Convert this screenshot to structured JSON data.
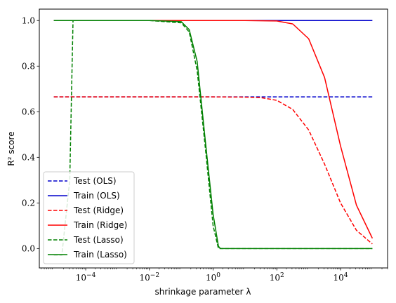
{
  "chart_data": {
    "type": "line",
    "xlabel": "shrinkage parameter λ",
    "ylabel": "R² score",
    "xscale": "log",
    "xlim": [
      3.5e-06,
      300000
    ],
    "ylim": [
      -0.085,
      1.05
    ],
    "xticks": [
      {
        "value": 0.0001,
        "base": "10",
        "exp": "−4"
      },
      {
        "value": 0.01,
        "base": "10",
        "exp": "−2"
      },
      {
        "value": 1,
        "base": "10",
        "exp": "0"
      },
      {
        "value": 100,
        "base": "10",
        "exp": "2"
      },
      {
        "value": 10000,
        "base": "10",
        "exp": "4"
      }
    ],
    "yticks": [
      "0.0",
      "0.2",
      "0.4",
      "0.6",
      "0.8",
      "1.0"
    ],
    "grid": false,
    "legend_position": "lower-left",
    "series": [
      {
        "name": "Test (OLS)",
        "color": "#0000cc",
        "dash": true,
        "x": [
          1e-05,
          100000
        ],
        "y": [
          0.665,
          0.665
        ]
      },
      {
        "name": "Train (OLS)",
        "color": "#0000cc",
        "dash": false,
        "x": [
          1e-05,
          100000
        ],
        "y": [
          1.0,
          1.0
        ]
      },
      {
        "name": "Test (Ridge)",
        "color": "#ff0000",
        "dash": true,
        "x": [
          1e-05,
          1,
          10,
          31,
          100,
          316,
          1000,
          3162,
          10000,
          31623,
          100000
        ],
        "y": [
          0.665,
          0.665,
          0.664,
          0.662,
          0.65,
          0.61,
          0.52,
          0.37,
          0.2,
          0.08,
          0.02
        ]
      },
      {
        "name": "Train (Ridge)",
        "color": "#ff0000",
        "dash": false,
        "x": [
          1e-05,
          10,
          100,
          316,
          1000,
          3162,
          10000,
          31623,
          100000
        ],
        "y": [
          1.0,
          1.0,
          0.998,
          0.985,
          0.92,
          0.75,
          0.45,
          0.19,
          0.045
        ]
      },
      {
        "name": "Test (Lasso)",
        "color": "#008000",
        "dash": true,
        "x": [
          1e-05,
          1.78e-05,
          3.16e-05,
          4e-05,
          0.0001,
          0.01,
          0.1,
          0.178,
          0.316,
          0.562,
          1,
          1.47,
          10,
          100000
        ],
        "y": [
          -0.03,
          -0.03,
          0.3,
          1.0,
          1.0,
          1.0,
          0.99,
          0.95,
          0.78,
          0.45,
          0.1,
          0.0,
          0.0,
          0.0
        ]
      },
      {
        "name": "Train (Lasso)",
        "color": "#008000",
        "dash": false,
        "x": [
          1e-05,
          0.01,
          0.1,
          0.178,
          0.316,
          0.562,
          1,
          1.47,
          1.7,
          10,
          100000
        ],
        "y": [
          1.0,
          1.0,
          0.995,
          0.96,
          0.82,
          0.48,
          0.15,
          0.01,
          0.0,
          0.0,
          0.0
        ]
      }
    ]
  }
}
